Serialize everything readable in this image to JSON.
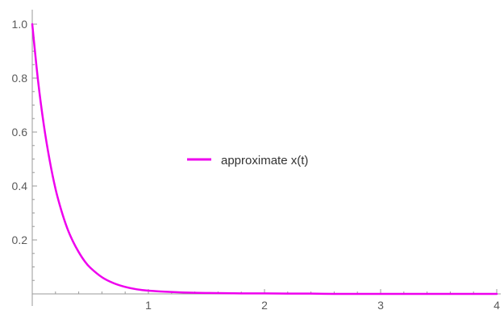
{
  "chart_data": {
    "type": "line",
    "title": "",
    "xlabel": "",
    "ylabel": "",
    "xlim": [
      0,
      4
    ],
    "ylim": [
      0,
      1.0
    ],
    "x_ticks": [
      1,
      2,
      3,
      4
    ],
    "x_tick_labels": [
      "1",
      "2",
      "3",
      "4"
    ],
    "y_ticks": [
      0.2,
      0.4,
      0.6,
      0.8,
      1.0
    ],
    "y_tick_labels": [
      "0.2",
      "0.4",
      "0.6",
      "0.8",
      "1.0"
    ],
    "grid": false,
    "legend": "center",
    "series": [
      {
        "name": "approximate x(t)",
        "color": "#ee00ee",
        "x": [
          0,
          0.05,
          0.1,
          0.15,
          0.2,
          0.25,
          0.3,
          0.35,
          0.4,
          0.45,
          0.5,
          0.6,
          0.7,
          0.8,
          0.9,
          1.0,
          1.2,
          1.4,
          1.6,
          1.8,
          2.0,
          2.2,
          2.4,
          2.6,
          2.8,
          3.0,
          3.2,
          3.4,
          3.6,
          3.8,
          4.0
        ],
        "y": [
          1.0,
          0.79,
          0.625,
          0.495,
          0.39,
          0.31,
          0.245,
          0.195,
          0.155,
          0.122,
          0.097,
          0.062,
          0.04,
          0.026,
          0.017,
          0.012,
          0.007,
          0.004,
          0.003,
          0.002,
          0.002,
          0.001,
          0.001,
          0.0,
          0.0,
          0.0,
          0.0,
          0.0,
          0.0,
          0.0,
          0.0
        ]
      }
    ]
  }
}
